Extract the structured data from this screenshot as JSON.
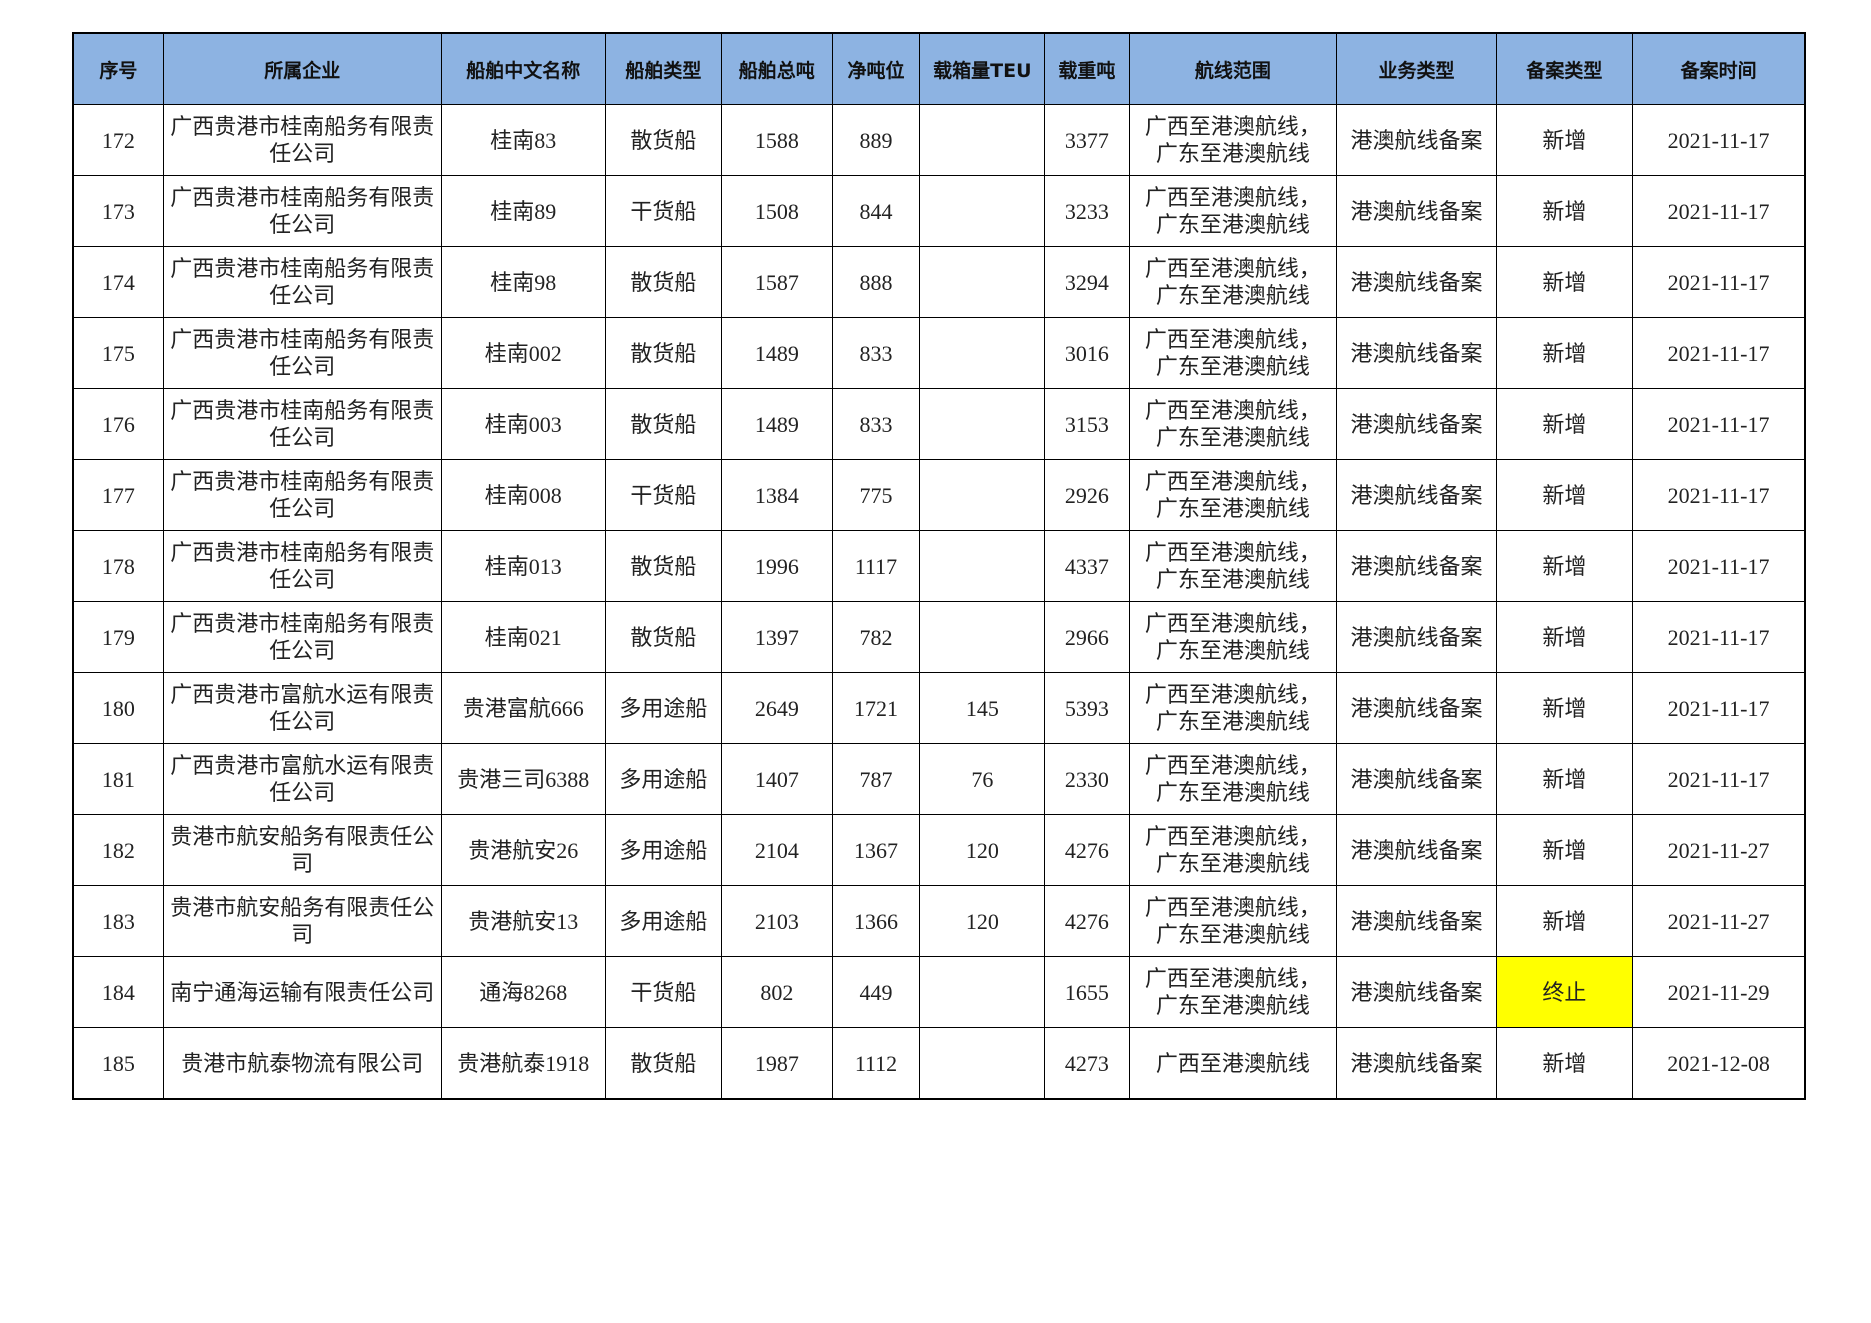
{
  "table": {
    "headers": [
      "序号",
      "所属企业",
      "船舶中文名称",
      "船舶类型",
      "船舶总吨",
      "净吨位",
      "载箱量TEU",
      "载重吨",
      "航线范围",
      "业务类型",
      "备案类型",
      "备案时间"
    ],
    "highlight_color": "#ffff00",
    "header_color": "#8db3e2",
    "rows": [
      [
        "172",
        "广西贵港市桂南船务有限责任公司",
        "桂南83",
        "散货船",
        "1588",
        "889",
        "",
        "3377",
        "广西至港澳航线，广东至港澳航线",
        "港澳航线备案",
        "新增",
        "2021-11-17"
      ],
      [
        "173",
        "广西贵港市桂南船务有限责任公司",
        "桂南89",
        "干货船",
        "1508",
        "844",
        "",
        "3233",
        "广西至港澳航线，广东至港澳航线",
        "港澳航线备案",
        "新增",
        "2021-11-17"
      ],
      [
        "174",
        "广西贵港市桂南船务有限责任公司",
        "桂南98",
        "散货船",
        "1587",
        "888",
        "",
        "3294",
        "广西至港澳航线，广东至港澳航线",
        "港澳航线备案",
        "新增",
        "2021-11-17"
      ],
      [
        "175",
        "广西贵港市桂南船务有限责任公司",
        "桂南002",
        "散货船",
        "1489",
        "833",
        "",
        "3016",
        "广西至港澳航线，广东至港澳航线",
        "港澳航线备案",
        "新增",
        "2021-11-17"
      ],
      [
        "176",
        "广西贵港市桂南船务有限责任公司",
        "桂南003",
        "散货船",
        "1489",
        "833",
        "",
        "3153",
        "广西至港澳航线，广东至港澳航线",
        "港澳航线备案",
        "新增",
        "2021-11-17"
      ],
      [
        "177",
        "广西贵港市桂南船务有限责任公司",
        "桂南008",
        "干货船",
        "1384",
        "775",
        "",
        "2926",
        "广西至港澳航线，广东至港澳航线",
        "港澳航线备案",
        "新增",
        "2021-11-17"
      ],
      [
        "178",
        "广西贵港市桂南船务有限责任公司",
        "桂南013",
        "散货船",
        "1996",
        "1117",
        "",
        "4337",
        "广西至港澳航线，广东至港澳航线",
        "港澳航线备案",
        "新增",
        "2021-11-17"
      ],
      [
        "179",
        "广西贵港市桂南船务有限责任公司",
        "桂南021",
        "散货船",
        "1397",
        "782",
        "",
        "2966",
        "广西至港澳航线，广东至港澳航线",
        "港澳航线备案",
        "新增",
        "2021-11-17"
      ],
      [
        "180",
        "广西贵港市富航水运有限责任公司",
        "贵港富航666",
        "多用途船",
        "2649",
        "1721",
        "145",
        "5393",
        "广西至港澳航线，广东至港澳航线",
        "港澳航线备案",
        "新增",
        "2021-11-17"
      ],
      [
        "181",
        "广西贵港市富航水运有限责任公司",
        "贵港三司6388",
        "多用途船",
        "1407",
        "787",
        "76",
        "2330",
        "广西至港澳航线，广东至港澳航线",
        "港澳航线备案",
        "新增",
        "2021-11-17"
      ],
      [
        "182",
        "贵港市航安船务有限责任公司",
        "贵港航安26",
        "多用途船",
        "2104",
        "1367",
        "120",
        "4276",
        "广西至港澳航线，广东至港澳航线",
        "港澳航线备案",
        "新增",
        "2021-11-27"
      ],
      [
        "183",
        "贵港市航安船务有限责任公司",
        "贵港航安13",
        "多用途船",
        "2103",
        "1366",
        "120",
        "4276",
        "广西至港澳航线，广东至港澳航线",
        "港澳航线备案",
        "新增",
        "2021-11-27"
      ],
      [
        "184",
        "南宁通海运输有限责任公司",
        "通海8268",
        "干货船",
        "802",
        "449",
        "",
        "1655",
        "广西至港澳航线，广东至港澳航线",
        "港澳航线备案",
        "终止",
        "2021-11-29"
      ],
      [
        "185",
        "贵港市航泰物流有限公司",
        "贵港航泰1918",
        "散货船",
        "1987",
        "1112",
        "",
        "4273",
        "广西至港澳航线",
        "港澳航线备案",
        "新增",
        "2021-12-08"
      ]
    ],
    "highlighted_cells": [
      {
        "row": 12,
        "col": 10
      }
    ]
  }
}
